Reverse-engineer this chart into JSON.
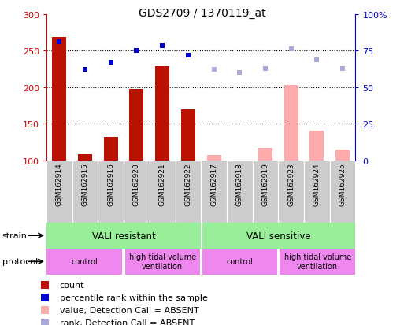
{
  "title": "GDS2709 / 1370119_at",
  "samples": [
    "GSM162914",
    "GSM162915",
    "GSM162916",
    "GSM162920",
    "GSM162921",
    "GSM162922",
    "GSM162917",
    "GSM162918",
    "GSM162919",
    "GSM162923",
    "GSM162924",
    "GSM162925"
  ],
  "count_values": [
    268,
    108,
    132,
    198,
    229,
    170,
    null,
    null,
    null,
    null,
    null,
    null
  ],
  "absent_value_values": [
    null,
    null,
    null,
    null,
    null,
    null,
    107,
    100,
    117,
    203,
    141,
    115
  ],
  "rank_present": [
    262,
    224,
    234,
    250,
    257,
    244,
    null,
    null,
    null,
    null,
    null,
    null
  ],
  "rank_absent": [
    null,
    null,
    null,
    null,
    null,
    null,
    224,
    220,
    225,
    252,
    237,
    226
  ],
  "ylim_left": [
    100,
    300
  ],
  "yticks_left": [
    100,
    150,
    200,
    250,
    300
  ],
  "yticks_right": [
    0,
    25,
    50,
    75,
    100
  ],
  "yticklabels_right": [
    "0",
    "25",
    "50",
    "75",
    "100%"
  ],
  "bar_width": 0.55,
  "color_count": "#bb1100",
  "color_absent_value": "#ffaaaa",
  "color_rank_present": "#0000cc",
  "color_rank_absent": "#aaaadd",
  "color_strain": "#99ee99",
  "color_protocol": "#ee88ee",
  "color_sample_bg": "#cccccc",
  "bg_color": "#ffffff",
  "ax_color_left": "#cc0000",
  "ax_color_right": "#0000cc",
  "legend_items": [
    {
      "label": "count",
      "color": "#bb1100"
    },
    {
      "label": "percentile rank within the sample",
      "color": "#0000cc"
    },
    {
      "label": "value, Detection Call = ABSENT",
      "color": "#ffaaaa"
    },
    {
      "label": "rank, Detection Call = ABSENT",
      "color": "#aaaadd"
    }
  ]
}
